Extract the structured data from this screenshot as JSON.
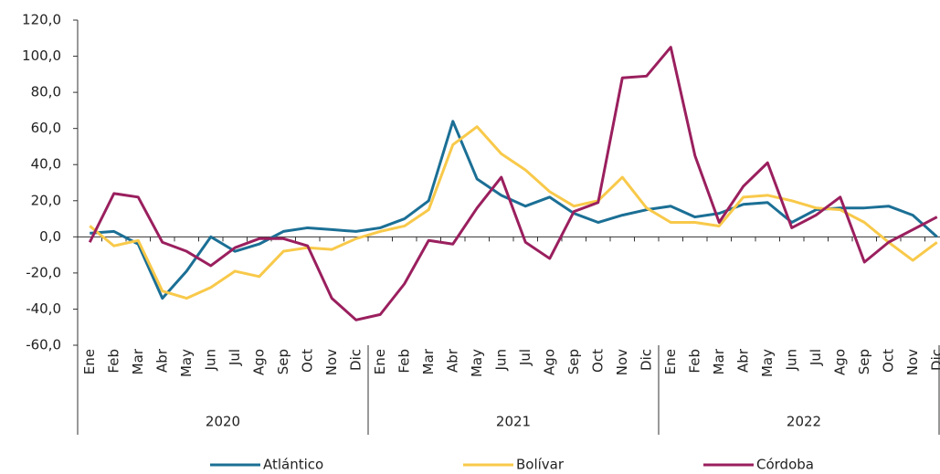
{
  "chart_data": {
    "type": "line",
    "categories": [
      "Ene",
      "Feb",
      "Mar",
      "Abr",
      "May",
      "Jun",
      "Jul",
      "Ago",
      "Sep",
      "Oct",
      "Nov",
      "Dic",
      "Ene",
      "Feb",
      "Mar",
      "Abr",
      "May",
      "Jun",
      "Jul",
      "Ago",
      "Sep",
      "Oct",
      "Nov",
      "Dic",
      "Ene",
      "Feb",
      "Mar",
      "Abr",
      "May",
      "Jun",
      "Jul",
      "Ago",
      "Sep",
      "Oct",
      "Nov",
      "Dic"
    ],
    "years": [
      "2020",
      "2021",
      "2022"
    ],
    "series": [
      {
        "name": "Atlántico",
        "color": "#1b6f95",
        "values": [
          2,
          3,
          -4,
          -34,
          -19,
          0,
          -8,
          -4,
          3,
          5,
          4,
          3,
          5,
          10,
          20,
          64,
          32,
          23,
          17,
          22,
          13,
          8,
          12,
          15,
          17,
          11,
          13,
          18,
          19,
          8,
          15,
          16,
          16,
          17,
          12,
          0
        ]
      },
      {
        "name": "Bolívar",
        "color": "#f8c94a",
        "values": [
          6,
          -5,
          -2,
          -30,
          -34,
          -28,
          -19,
          -22,
          -8,
          -6,
          -7,
          -1,
          3,
          6,
          15,
          51,
          61,
          46,
          37,
          25,
          17,
          20,
          33,
          16,
          8,
          8,
          6,
          22,
          23,
          20,
          16,
          15,
          8,
          -3,
          -13,
          -3
        ]
      },
      {
        "name": "Córdoba",
        "color": "#9a1f5e",
        "values": [
          -3,
          24,
          22,
          -3,
          -8,
          -16,
          -6,
          -1,
          -1,
          -5,
          -34,
          -46,
          -43,
          -26,
          -2,
          -4,
          16,
          33,
          -3,
          -12,
          14,
          19,
          88,
          89,
          105,
          45,
          8,
          28,
          41,
          5,
          12,
          22,
          -14,
          -3,
          4,
          11
        ]
      }
    ],
    "ylim": [
      -60,
      120
    ],
    "yticks": [
      {
        "value": -60,
        "label": "-60,0"
      },
      {
        "value": -40,
        "label": "-40,0"
      },
      {
        "value": -20,
        "label": "-20,0"
      },
      {
        "value": 0,
        "label": "0,0"
      },
      {
        "value": 20,
        "label": "20,0"
      },
      {
        "value": 40,
        "label": "40,0"
      },
      {
        "value": 60,
        "label": "60,0"
      },
      {
        "value": 80,
        "label": "80,0"
      },
      {
        "value": 100,
        "label": "100,0"
      },
      {
        "value": 120,
        "label": "120,0"
      }
    ],
    "grid": false
  }
}
